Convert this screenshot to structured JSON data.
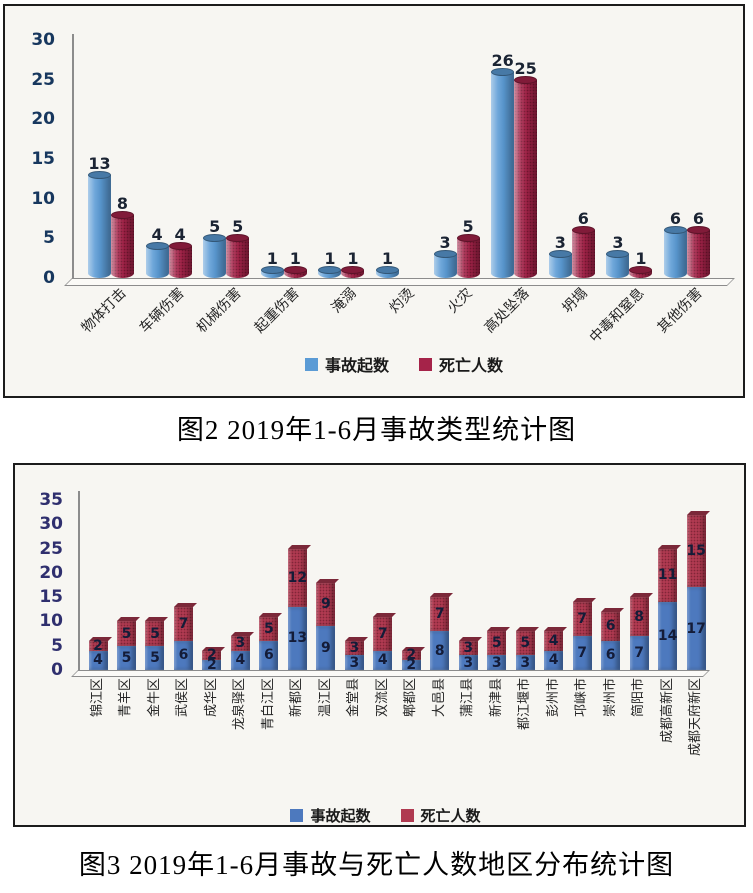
{
  "captions": {
    "fig2": "图2 2019年1-6月事故类型统计图",
    "fig3": "图3 2019年1-6月事故与死亡人数地区分布统计图"
  },
  "colors": {
    "chart1_accidents_blue": "#5b9bd5",
    "chart1_deaths_red": "#a52349",
    "chart2_accidents_blue": "#4d79be",
    "chart2_deaths_red": "#b03a51",
    "panel_background": "#f7f6f2",
    "tick_label_navy": "#17375e",
    "axis_gray": "#8c8c8c"
  },
  "chart_data": [
    {
      "type": "bar",
      "bar_style": "3d-cylinder",
      "stacked": false,
      "title": "图2 2019年1-6月事故类型统计图",
      "categories": [
        "物体打击",
        "车辆伤害",
        "机械伤害",
        "起重伤害",
        "淹溺",
        "灼烫",
        "火灾",
        "高处坠落",
        "坍塌",
        "中毒和窒息",
        "其他伤害"
      ],
      "series": [
        {
          "name": "事故起数",
          "color": "#5b9bd5",
          "values": [
            13,
            4,
            5,
            1,
            1,
            1,
            3,
            26,
            3,
            3,
            6
          ]
        },
        {
          "name": "死亡人数",
          "color": "#a52349",
          "values": [
            8,
            4,
            5,
            1,
            1,
            null,
            5,
            25,
            6,
            1,
            6
          ]
        }
      ],
      "xlabel": "",
      "ylabel": "",
      "ylim": [
        0,
        30
      ],
      "yticks": [
        0,
        5,
        10,
        15,
        20,
        25,
        30
      ],
      "grid": false,
      "legend_position": "bottom",
      "data_labels": true
    },
    {
      "type": "bar",
      "bar_style": "3d-column",
      "stacked": true,
      "title": "图3 2019年1-6月事故与死亡人数地区分布统计图",
      "categories": [
        "锦江区",
        "青羊区",
        "金牛区",
        "武侯区",
        "成华区",
        "龙泉驿区",
        "青白江区",
        "新都区",
        "温江区",
        "金堂县",
        "双流区",
        "郫都区",
        "大邑县",
        "蒲江县",
        "新津县",
        "都江堰市",
        "彭州市",
        "邛崃市",
        "崇州市",
        "简阳市",
        "成都高新区",
        "成都天府新区"
      ],
      "series": [
        {
          "name": "事故起数",
          "color": "#4d79be",
          "values": [
            4,
            5,
            5,
            6,
            2,
            4,
            6,
            13,
            9,
            3,
            4,
            2,
            8,
            3,
            3,
            3,
            4,
            7,
            6,
            7,
            14,
            17
          ]
        },
        {
          "name": "死亡人数",
          "color": "#b03a51",
          "values": [
            2,
            5,
            5,
            7,
            2,
            3,
            5,
            12,
            9,
            3,
            7,
            2,
            7,
            3,
            5,
            5,
            4,
            7,
            6,
            8,
            11,
            15
          ]
        }
      ],
      "xlabel": "",
      "ylabel": "",
      "ylim": [
        0,
        35
      ],
      "yticks": [
        0,
        5,
        10,
        15,
        20,
        25,
        30,
        35
      ],
      "grid": false,
      "legend_position": "bottom",
      "data_labels": true
    }
  ]
}
